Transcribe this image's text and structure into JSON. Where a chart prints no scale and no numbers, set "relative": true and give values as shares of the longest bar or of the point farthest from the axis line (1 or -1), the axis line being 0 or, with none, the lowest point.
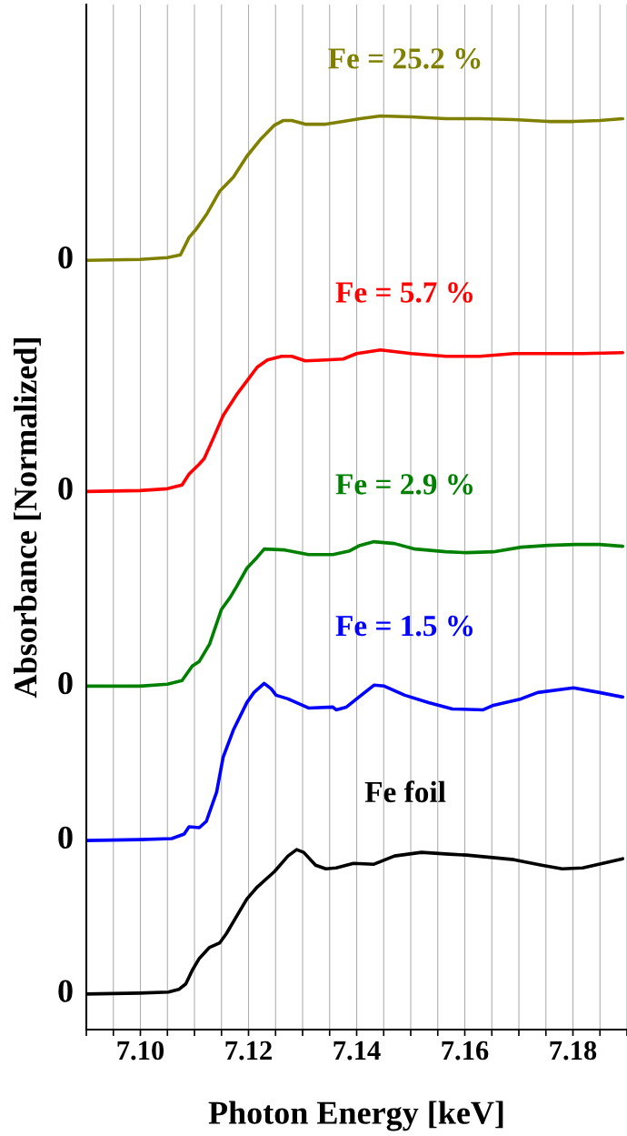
{
  "chart_data": {
    "type": "line",
    "relative": true,
    "xlabel": "Photon Energy [keV]",
    "ylabel": "Absorbance [Normalized]",
    "xlim": [
      7.09,
      7.19
    ],
    "xticks": [
      {
        "value": 7.09,
        "label": null
      },
      {
        "value": 7.095,
        "label": null
      },
      {
        "value": 7.1,
        "label": "7.10"
      },
      {
        "value": 7.105,
        "label": null
      },
      {
        "value": 7.11,
        "label": null
      },
      {
        "value": 7.115,
        "label": null
      },
      {
        "value": 7.12,
        "label": "7.12"
      },
      {
        "value": 7.125,
        "label": null
      },
      {
        "value": 7.13,
        "label": null
      },
      {
        "value": 7.135,
        "label": null
      },
      {
        "value": 7.14,
        "label": "7.14"
      },
      {
        "value": 7.145,
        "label": null
      },
      {
        "value": 7.15,
        "label": null
      },
      {
        "value": 7.155,
        "label": null
      },
      {
        "value": 7.16,
        "label": "7.16"
      },
      {
        "value": 7.165,
        "label": null
      },
      {
        "value": 7.17,
        "label": null
      },
      {
        "value": 7.175,
        "label": null
      },
      {
        "value": 7.18,
        "label": "7.18"
      },
      {
        "value": 7.185,
        "label": null
      },
      {
        "value": 7.19,
        "label": null
      }
    ],
    "grid": "x",
    "marker": "none",
    "line_style": "solid",
    "annotations": [
      "0",
      "0",
      "0",
      "0",
      "0"
    ],
    "series": [
      {
        "name": "Fe = 25.2 %",
        "color": "#808000",
        "x": [
          7.09,
          7.0999,
          7.105,
          7.1074,
          7.109,
          7.1103,
          7.1122,
          7.1147,
          7.1172,
          7.1197,
          7.1223,
          7.1248,
          7.1264,
          7.128,
          7.1305,
          7.1343,
          7.1375,
          7.1406,
          7.1444,
          7.1501,
          7.1565,
          7.1628,
          7.1691,
          7.1754,
          7.1801,
          7.1849,
          7.1892
        ],
        "values": [
          0.842,
          0.843,
          0.845,
          0.848,
          0.867,
          0.876,
          0.892,
          0.918,
          0.933,
          0.956,
          0.975,
          0.99,
          0.995,
          0.995,
          0.991,
          0.991,
          0.994,
          0.997,
          1.0,
          0.999,
          0.997,
          0.997,
          0.996,
          0.994,
          0.994,
          0.995,
          0.997
        ]
      },
      {
        "name": "Fe = 5.7 %",
        "color": "#ff0000",
        "x": [
          7.09,
          7.0999,
          7.105,
          7.1077,
          7.109,
          7.1109,
          7.1118,
          7.1134,
          7.1153,
          7.1178,
          7.1197,
          7.1216,
          7.1235,
          7.1261,
          7.128,
          7.1305,
          7.1343,
          7.1375,
          7.14,
          7.1444,
          7.1501,
          7.1565,
          7.1628,
          7.1691,
          7.1754,
          7.1818,
          7.1892
        ],
        "values": [
          0.589,
          0.59,
          0.592,
          0.596,
          0.608,
          0.619,
          0.625,
          0.646,
          0.672,
          0.695,
          0.71,
          0.725,
          0.733,
          0.737,
          0.737,
          0.732,
          0.733,
          0.734,
          0.74,
          0.744,
          0.74,
          0.737,
          0.737,
          0.74,
          0.74,
          0.74,
          0.741
        ]
      },
      {
        "name": "Fe = 2.9 %",
        "color": "#008000",
        "x": [
          7.09,
          7.0999,
          7.105,
          7.1077,
          7.1096,
          7.1109,
          7.1128,
          7.115,
          7.1166,
          7.1178,
          7.1197,
          7.1216,
          7.1229,
          7.1267,
          7.1311,
          7.1356,
          7.1387,
          7.1406,
          7.1432,
          7.147,
          7.1508,
          7.1565,
          7.1603,
          7.1653,
          7.1704,
          7.1754,
          7.1805,
          7.1849,
          7.1892
        ],
        "values": [
          0.376,
          0.376,
          0.378,
          0.382,
          0.398,
          0.403,
          0.422,
          0.46,
          0.473,
          0.485,
          0.505,
          0.517,
          0.526,
          0.525,
          0.52,
          0.52,
          0.524,
          0.53,
          0.534,
          0.532,
          0.526,
          0.523,
          0.522,
          0.523,
          0.528,
          0.53,
          0.531,
          0.531,
          0.529
        ]
      },
      {
        "name": "Fe = 1.5 %",
        "color": "#0000ff",
        "x": [
          7.09,
          7.0999,
          7.1058,
          7.1081,
          7.109,
          7.1109,
          7.1122,
          7.1141,
          7.1153,
          7.1172,
          7.1197,
          7.121,
          7.1229,
          7.1242,
          7.1251,
          7.1273,
          7.1311,
          7.1356,
          7.1362,
          7.1381,
          7.14,
          7.1432,
          7.1451,
          7.1489,
          7.1533,
          7.1577,
          7.1634,
          7.1653,
          7.1704,
          7.1735,
          7.1801,
          7.1849,
          7.1892
        ],
        "values": [
          0.207,
          0.208,
          0.209,
          0.214,
          0.222,
          0.221,
          0.228,
          0.26,
          0.298,
          0.328,
          0.358,
          0.369,
          0.379,
          0.373,
          0.366,
          0.362,
          0.352,
          0.353,
          0.35,
          0.353,
          0.362,
          0.377,
          0.376,
          0.366,
          0.358,
          0.351,
          0.35,
          0.355,
          0.362,
          0.369,
          0.374,
          0.369,
          0.364
        ]
      },
      {
        "name": "Fe foil",
        "color": "#000000",
        "x": [
          7.09,
          7.0999,
          7.1052,
          7.1071,
          7.1084,
          7.1096,
          7.1109,
          7.1128,
          7.1147,
          7.1159,
          7.1178,
          7.1197,
          7.1216,
          7.1248,
          7.1273,
          7.1289,
          7.1302,
          7.1324,
          7.1343,
          7.1362,
          7.1394,
          7.1432,
          7.147,
          7.152,
          7.1571,
          7.1603,
          7.1691,
          7.1742,
          7.178,
          7.1818,
          7.1892
        ],
        "values": [
          0.039,
          0.04,
          0.041,
          0.044,
          0.05,
          0.065,
          0.078,
          0.09,
          0.095,
          0.105,
          0.124,
          0.143,
          0.156,
          0.173,
          0.19,
          0.197,
          0.194,
          0.18,
          0.176,
          0.177,
          0.182,
          0.181,
          0.19,
          0.194,
          0.192,
          0.191,
          0.186,
          0.18,
          0.176,
          0.177,
          0.187
        ]
      }
    ]
  }
}
